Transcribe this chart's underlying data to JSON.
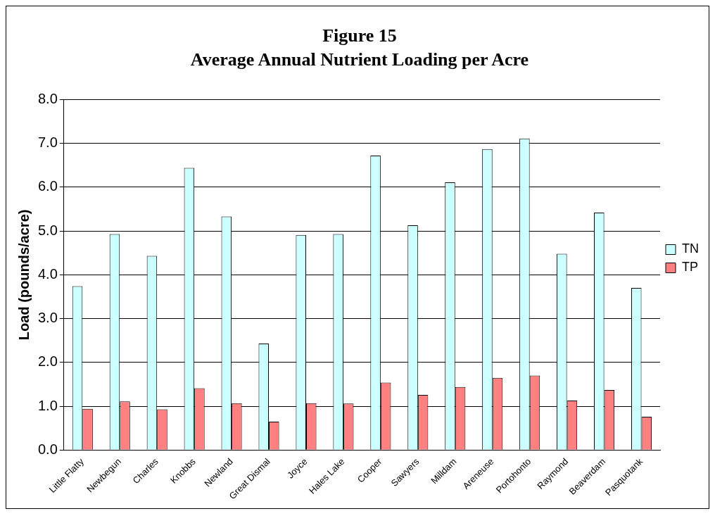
{
  "chart_data": {
    "type": "bar",
    "title": "Figure 15",
    "subtitle": "Average Annual Nutrient Loading per Acre",
    "ylabel": "Load (pounds/acre)",
    "categories": [
      "Little Flatty",
      "Newbegun",
      "Charles",
      "Knobbs",
      "Newland",
      "Great Dismal",
      "Joyce",
      "Hales Lake",
      "Cooper",
      "Sawyers",
      "Milldam",
      "Areneuse",
      "Portohonto",
      "Raymond",
      "Beaverdam",
      "Pasquotank"
    ],
    "series": [
      {
        "name": "TN",
        "color": "#ccffff",
        "values": [
          3.74,
          4.93,
          4.43,
          6.44,
          5.33,
          2.43,
          4.91,
          4.93,
          6.72,
          5.13,
          6.11,
          6.87,
          7.11,
          4.48,
          5.42,
          3.7
        ]
      },
      {
        "name": "TP",
        "color": "#ff8080",
        "values": [
          0.94,
          1.11,
          0.93,
          1.41,
          1.07,
          0.65,
          1.07,
          1.06,
          1.54,
          1.26,
          1.44,
          1.65,
          1.7,
          1.13,
          1.37,
          0.76
        ]
      }
    ],
    "ylim": [
      0,
      8
    ],
    "yticks": [
      {
        "value": 0,
        "label": "0.0"
      },
      {
        "value": 1,
        "label": "1.0"
      },
      {
        "value": 2,
        "label": "2.0"
      },
      {
        "value": 3,
        "label": "3.0"
      },
      {
        "value": 4,
        "label": "4.0"
      },
      {
        "value": 5,
        "label": "5.0"
      },
      {
        "value": 6,
        "label": "6.0"
      },
      {
        "value": 7,
        "label": "7.0"
      },
      {
        "value": 8,
        "label": "8.0"
      }
    ],
    "grid": "y",
    "legend": "right"
  }
}
